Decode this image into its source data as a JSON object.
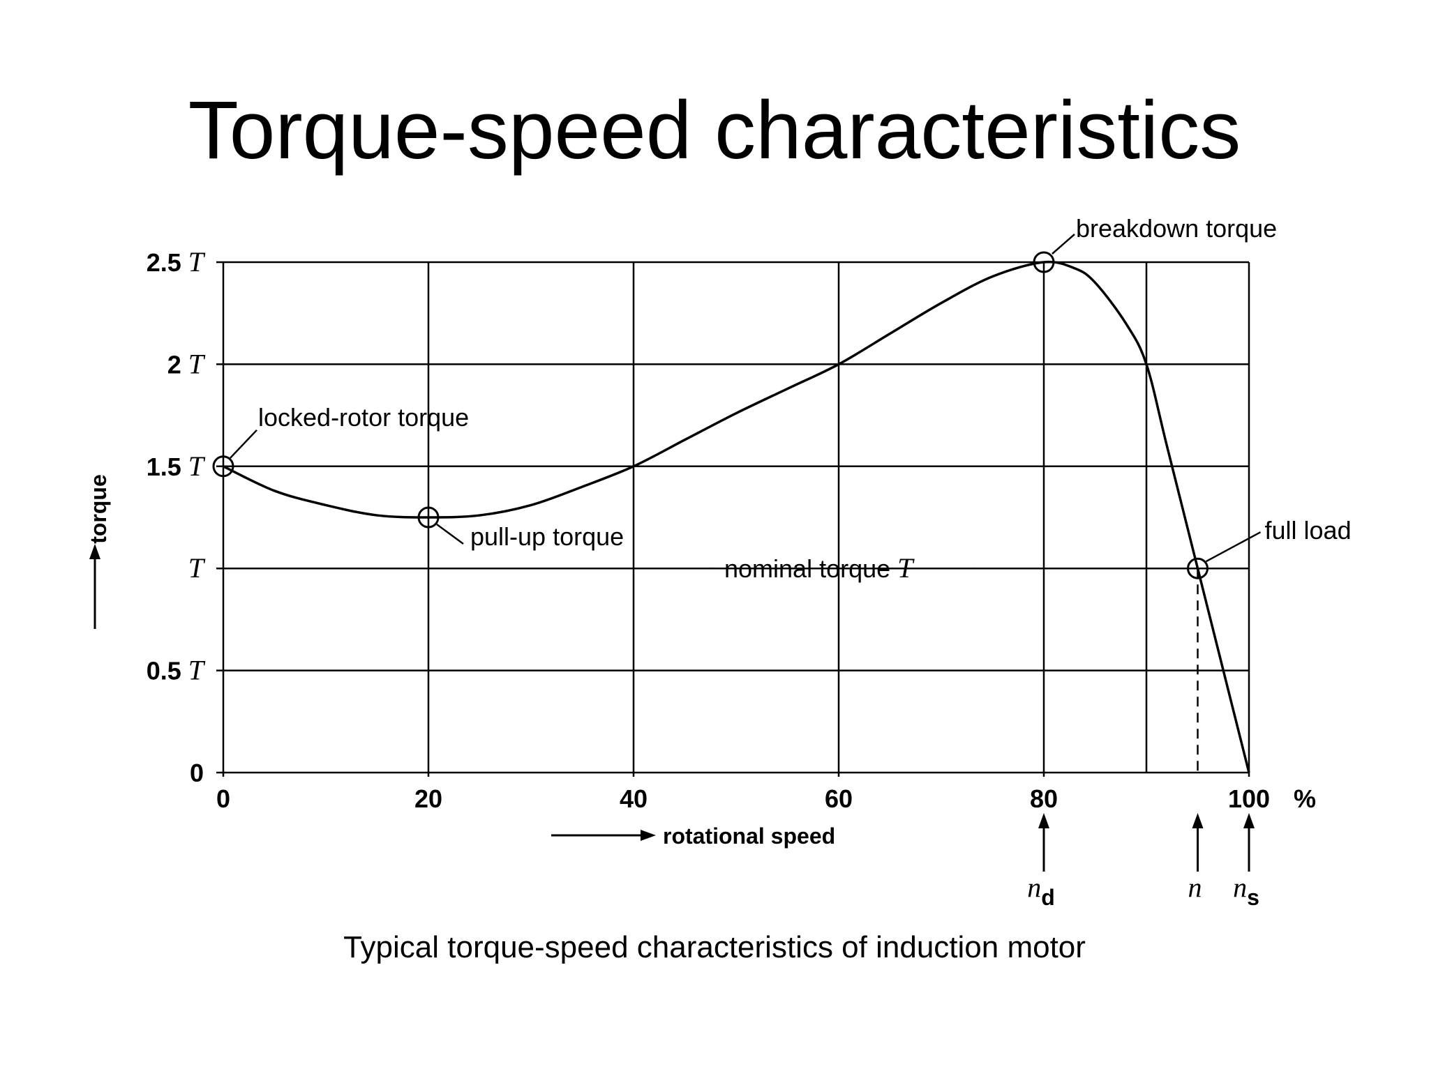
{
  "slide": {
    "title": "Torque-speed characteristics",
    "caption": "Typical torque-speed characteristics of induction motor"
  },
  "chart_data": {
    "type": "line",
    "title": "",
    "xlabel": "rotational speed",
    "ylabel": "torque",
    "x_unit": "%",
    "xlim": [
      0,
      100
    ],
    "ylim": [
      0,
      2.5
    ],
    "grid": true,
    "x_ticks": [
      0,
      20,
      40,
      60,
      80,
      100
    ],
    "x_tick_labels": [
      "0",
      "20",
      "40",
      "60",
      "80",
      "100"
    ],
    "y_ticks": [
      0,
      0.5,
      1,
      1.5,
      2,
      2.5
    ],
    "y_tick_labels": [
      {
        "num": "0",
        "sym": ""
      },
      {
        "num": "0.5",
        "sym": "T"
      },
      {
        "num": "",
        "sym": "T"
      },
      {
        "num": "1.5",
        "sym": "T"
      },
      {
        "num": "2",
        "sym": "T"
      },
      {
        "num": "2.5",
        "sym": "T"
      }
    ],
    "extra_gridline_x": 90,
    "series": [
      {
        "x": [
          0,
          5,
          10,
          15,
          20,
          25,
          30,
          35,
          40,
          45,
          50,
          55,
          60,
          65,
          70,
          75,
          80,
          83,
          85,
          88,
          90,
          92,
          95,
          97,
          100
        ],
        "y": [
          1.5,
          1.38,
          1.31,
          1.26,
          1.25,
          1.26,
          1.31,
          1.4,
          1.5,
          1.63,
          1.76,
          1.88,
          2.0,
          2.15,
          2.3,
          2.43,
          2.5,
          2.47,
          2.4,
          2.2,
          2.0,
          1.6,
          1.0,
          0.6,
          0.0
        ]
      }
    ],
    "nominal_torque": {
      "y": 1.0,
      "x_end": 95,
      "label": "nominal torque",
      "label_sym": "T"
    },
    "full_load_drop_x": 95,
    "markers": [
      {
        "x": 0,
        "y": 1.5,
        "label": "locked-rotor torque"
      },
      {
        "x": 20,
        "y": 1.25,
        "label": "pull-up torque"
      },
      {
        "x": 80,
        "y": 2.5,
        "label": "breakdown torque"
      },
      {
        "x": 95,
        "y": 1.0,
        "label": "full load"
      }
    ],
    "speed_markers": [
      {
        "x": 80,
        "sym": "n",
        "sub": "d"
      },
      {
        "x": 95,
        "sym": "n",
        "sub": ""
      },
      {
        "x": 100,
        "sym": "n",
        "sub": "s"
      }
    ]
  }
}
